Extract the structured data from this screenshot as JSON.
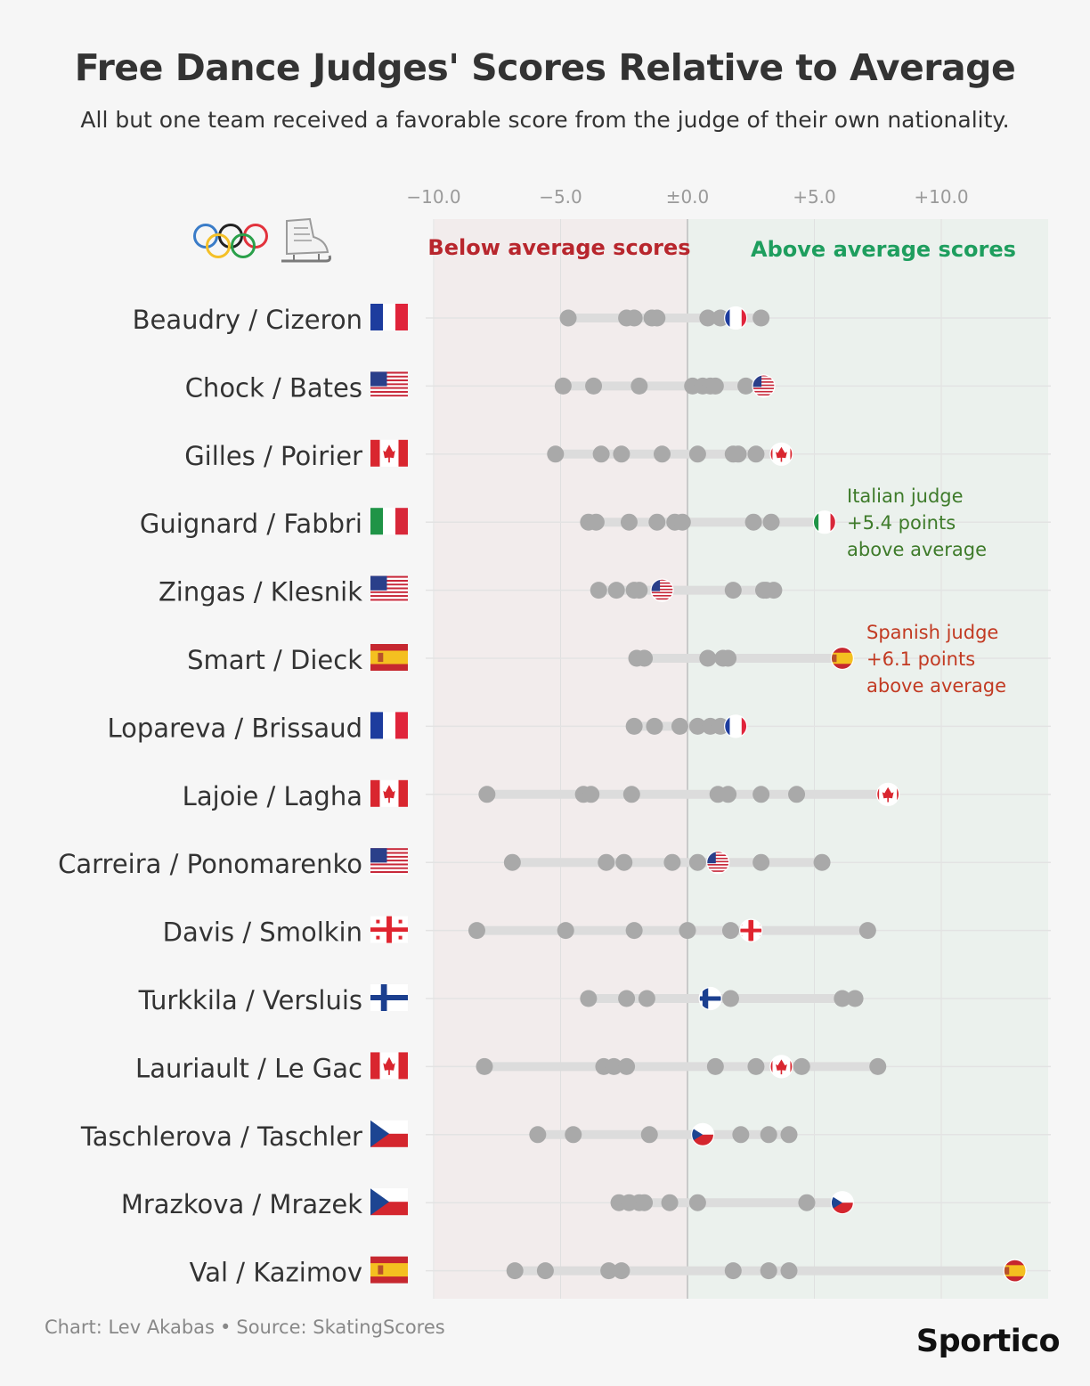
{
  "header": {
    "title": "Free Dance Judges' Scores Relative to Average",
    "subtitle": "All but one team received a favorable score from the judge of their own nationality."
  },
  "footer": {
    "credit": "Chart: Lev Akabas",
    "separator": "•",
    "source": "Source: SkatingScores",
    "brand": "Sportico"
  },
  "icons": {
    "rings": "olympic-rings-icon",
    "skate": "ice-skate-icon"
  },
  "colors": {
    "below_bg": "#f2ecec",
    "above_bg": "#ebf1ed",
    "below_label": "#b8262d",
    "above_label": "#1e9e5e",
    "dot": "#a9a9a9",
    "range_bar": "#dcdcdc",
    "italy_note": "#3e7b2a",
    "spain_note": "#c23a22"
  },
  "chart_data": {
    "type": "dot-range",
    "title": "Free Dance Judges' Scores Relative to Average",
    "xlim": [
      -10.5,
      14
    ],
    "x_ticks": [
      -10,
      -5,
      0,
      5,
      10
    ],
    "x_tick_labels": [
      "−10.0",
      "−5.0",
      "±0.0",
      "+5.0",
      "+10.0"
    ],
    "region_labels": {
      "below": "Below average scores",
      "above": "Above average scores"
    },
    "annotations": [
      {
        "team": "Guignard / Fabbri",
        "text": [
          "Italian judge",
          "+5.4 points",
          "above average"
        ],
        "color": "italy"
      },
      {
        "team": "Smart / Dieck",
        "text": [
          "Spanish judge",
          "+6.1 points",
          "above average"
        ],
        "color": "spain"
      }
    ],
    "teams": [
      {
        "name": "Beaudry / Cizeron",
        "country": "FRA",
        "scores": [
          -4.7,
          -2.4,
          -2.1,
          -1.4,
          -1.2,
          0.8,
          1.3,
          2.9
        ],
        "home": 1.9
      },
      {
        "name": "Chock / Bates",
        "country": "USA",
        "scores": [
          -4.9,
          -3.7,
          -1.9,
          0.2,
          0.6,
          0.9,
          1.1,
          2.3
        ],
        "home": 3.0
      },
      {
        "name": "Gilles / Poirier",
        "country": "CAN",
        "scores": [
          -5.2,
          -3.4,
          -2.6,
          -1.0,
          0.4,
          1.8,
          2.0,
          2.7
        ],
        "home": 3.7
      },
      {
        "name": "Guignard / Fabbri",
        "country": "ITA",
        "scores": [
          -3.9,
          -3.6,
          -2.3,
          -1.2,
          -0.5,
          -0.2,
          2.6,
          3.3
        ],
        "home": 5.4
      },
      {
        "name": "Zingas / Klesnik",
        "country": "USA",
        "scores": [
          -3.5,
          -2.8,
          -2.1,
          -1.9,
          1.8,
          3.0,
          3.1,
          3.4
        ],
        "home": -1.0
      },
      {
        "name": "Smart / Dieck",
        "country": "ESP",
        "scores": [
          -2.0,
          -1.7,
          0.8,
          1.4,
          1.6
        ],
        "home": 6.1
      },
      {
        "name": "Lopareva / Brissaud",
        "country": "FRA",
        "scores": [
          -2.1,
          -1.3,
          -0.3,
          0.4,
          0.9,
          1.3
        ],
        "home": 1.9
      },
      {
        "name": "Lajoie / Lagha",
        "country": "CAN",
        "scores": [
          -7.9,
          -4.1,
          -3.8,
          -2.2,
          1.2,
          1.6,
          2.9,
          4.3
        ],
        "home": 7.9
      },
      {
        "name": "Carreira / Ponomarenko",
        "country": "USA",
        "scores": [
          -6.9,
          -3.2,
          -2.5,
          -0.6,
          0.4,
          2.9,
          5.3
        ],
        "home": 1.2
      },
      {
        "name": "Davis / Smolkin",
        "country": "GEO",
        "scores": [
          -8.3,
          -4.8,
          -2.1,
          0.0,
          1.7,
          7.1
        ],
        "home": 2.5
      },
      {
        "name": "Turkkila / Versluis",
        "country": "FIN",
        "scores": [
          -3.9,
          -2.4,
          -1.6,
          1.7,
          6.1,
          6.6
        ],
        "home": 0.9
      },
      {
        "name": "Lauriault / Le Gac",
        "country": "CAN",
        "scores": [
          -8.0,
          -3.3,
          -2.9,
          -2.4,
          1.1,
          2.7,
          4.5,
          7.5
        ],
        "home": 3.7
      },
      {
        "name": "Taschlerova / Taschler",
        "country": "CZE",
        "scores": [
          -5.9,
          -4.5,
          -1.5,
          2.1,
          3.2,
          4.0
        ],
        "home": 0.6
      },
      {
        "name": "Mrazkova / Mrazek",
        "country": "CZE",
        "scores": [
          -2.7,
          -2.3,
          -1.9,
          -1.7,
          -0.7,
          0.4,
          4.7
        ],
        "home": 6.1
      },
      {
        "name": "Val / Kazimov",
        "country": "ESP",
        "scores": [
          -6.8,
          -5.6,
          -3.1,
          -2.6,
          1.8,
          3.2,
          4.0
        ],
        "home": 12.9
      }
    ]
  }
}
